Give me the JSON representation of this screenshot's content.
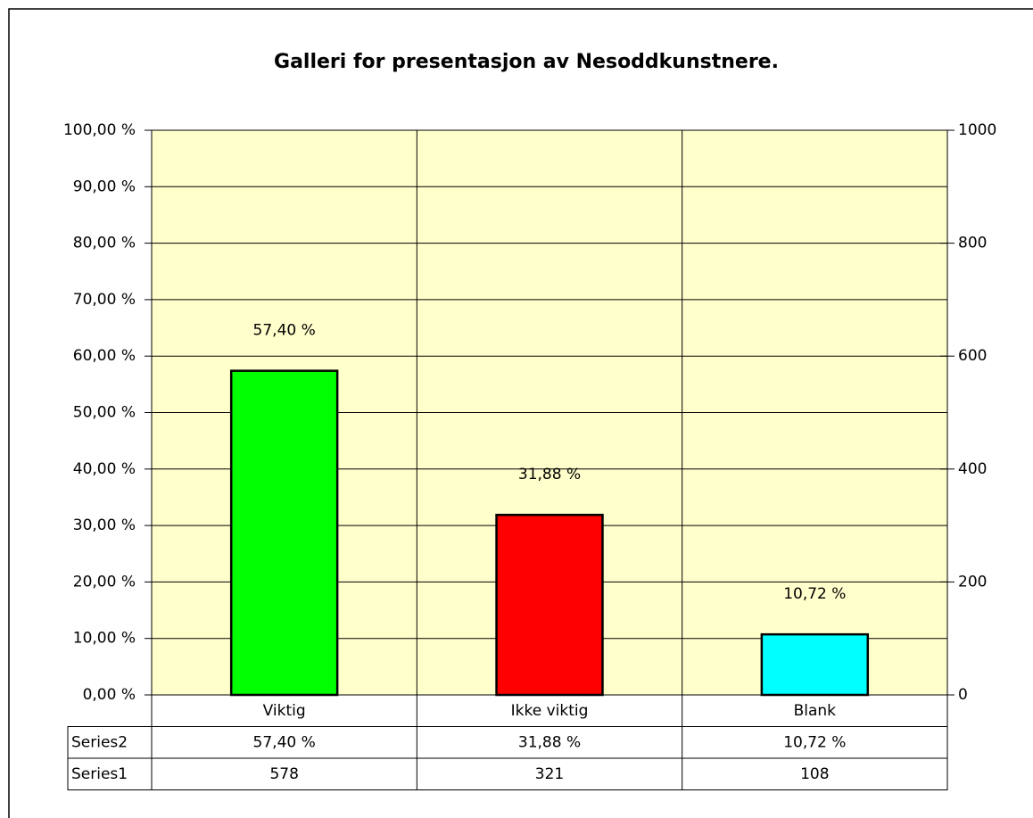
{
  "chart_data": {
    "type": "bar",
    "title": "Galleri for presentasjon av Nesoddkunstnere.",
    "categories": [
      "Viktig",
      "Ikke viktig",
      "Blank"
    ],
    "series": [
      {
        "name": "Series2",
        "colors": [
          "#00ff00",
          "#ff0000",
          "#00ffff"
        ],
        "values": [
          57.4,
          31.88,
          10.72
        ],
        "value_labels": [
          "57,40 %",
          "31,88 %",
          "10,72 %"
        ],
        "axis": "y"
      },
      {
        "name": "Series1",
        "values": [
          578,
          321,
          108
        ],
        "axis": "y2"
      }
    ],
    "ylim": [
      0,
      100
    ],
    "yticks": [
      {
        "value": 0,
        "label": "0,00 %"
      },
      {
        "value": 10,
        "label": "10,00 %"
      },
      {
        "value": 20,
        "label": "20,00 %"
      },
      {
        "value": 30,
        "label": "30,00 %"
      },
      {
        "value": 40,
        "label": "40,00 %"
      },
      {
        "value": 50,
        "label": "50,00 %"
      },
      {
        "value": 60,
        "label": "60,00 %"
      },
      {
        "value": 70,
        "label": "70,00 %"
      },
      {
        "value": 80,
        "label": "80,00 %"
      },
      {
        "value": 90,
        "label": "90,00 %"
      },
      {
        "value": 100,
        "label": "100,00 %"
      }
    ],
    "y2lim": [
      0,
      1000
    ],
    "y2ticks": [
      0,
      200,
      400,
      600,
      800,
      1000
    ],
    "grid": true,
    "background": "#ffffcc"
  }
}
